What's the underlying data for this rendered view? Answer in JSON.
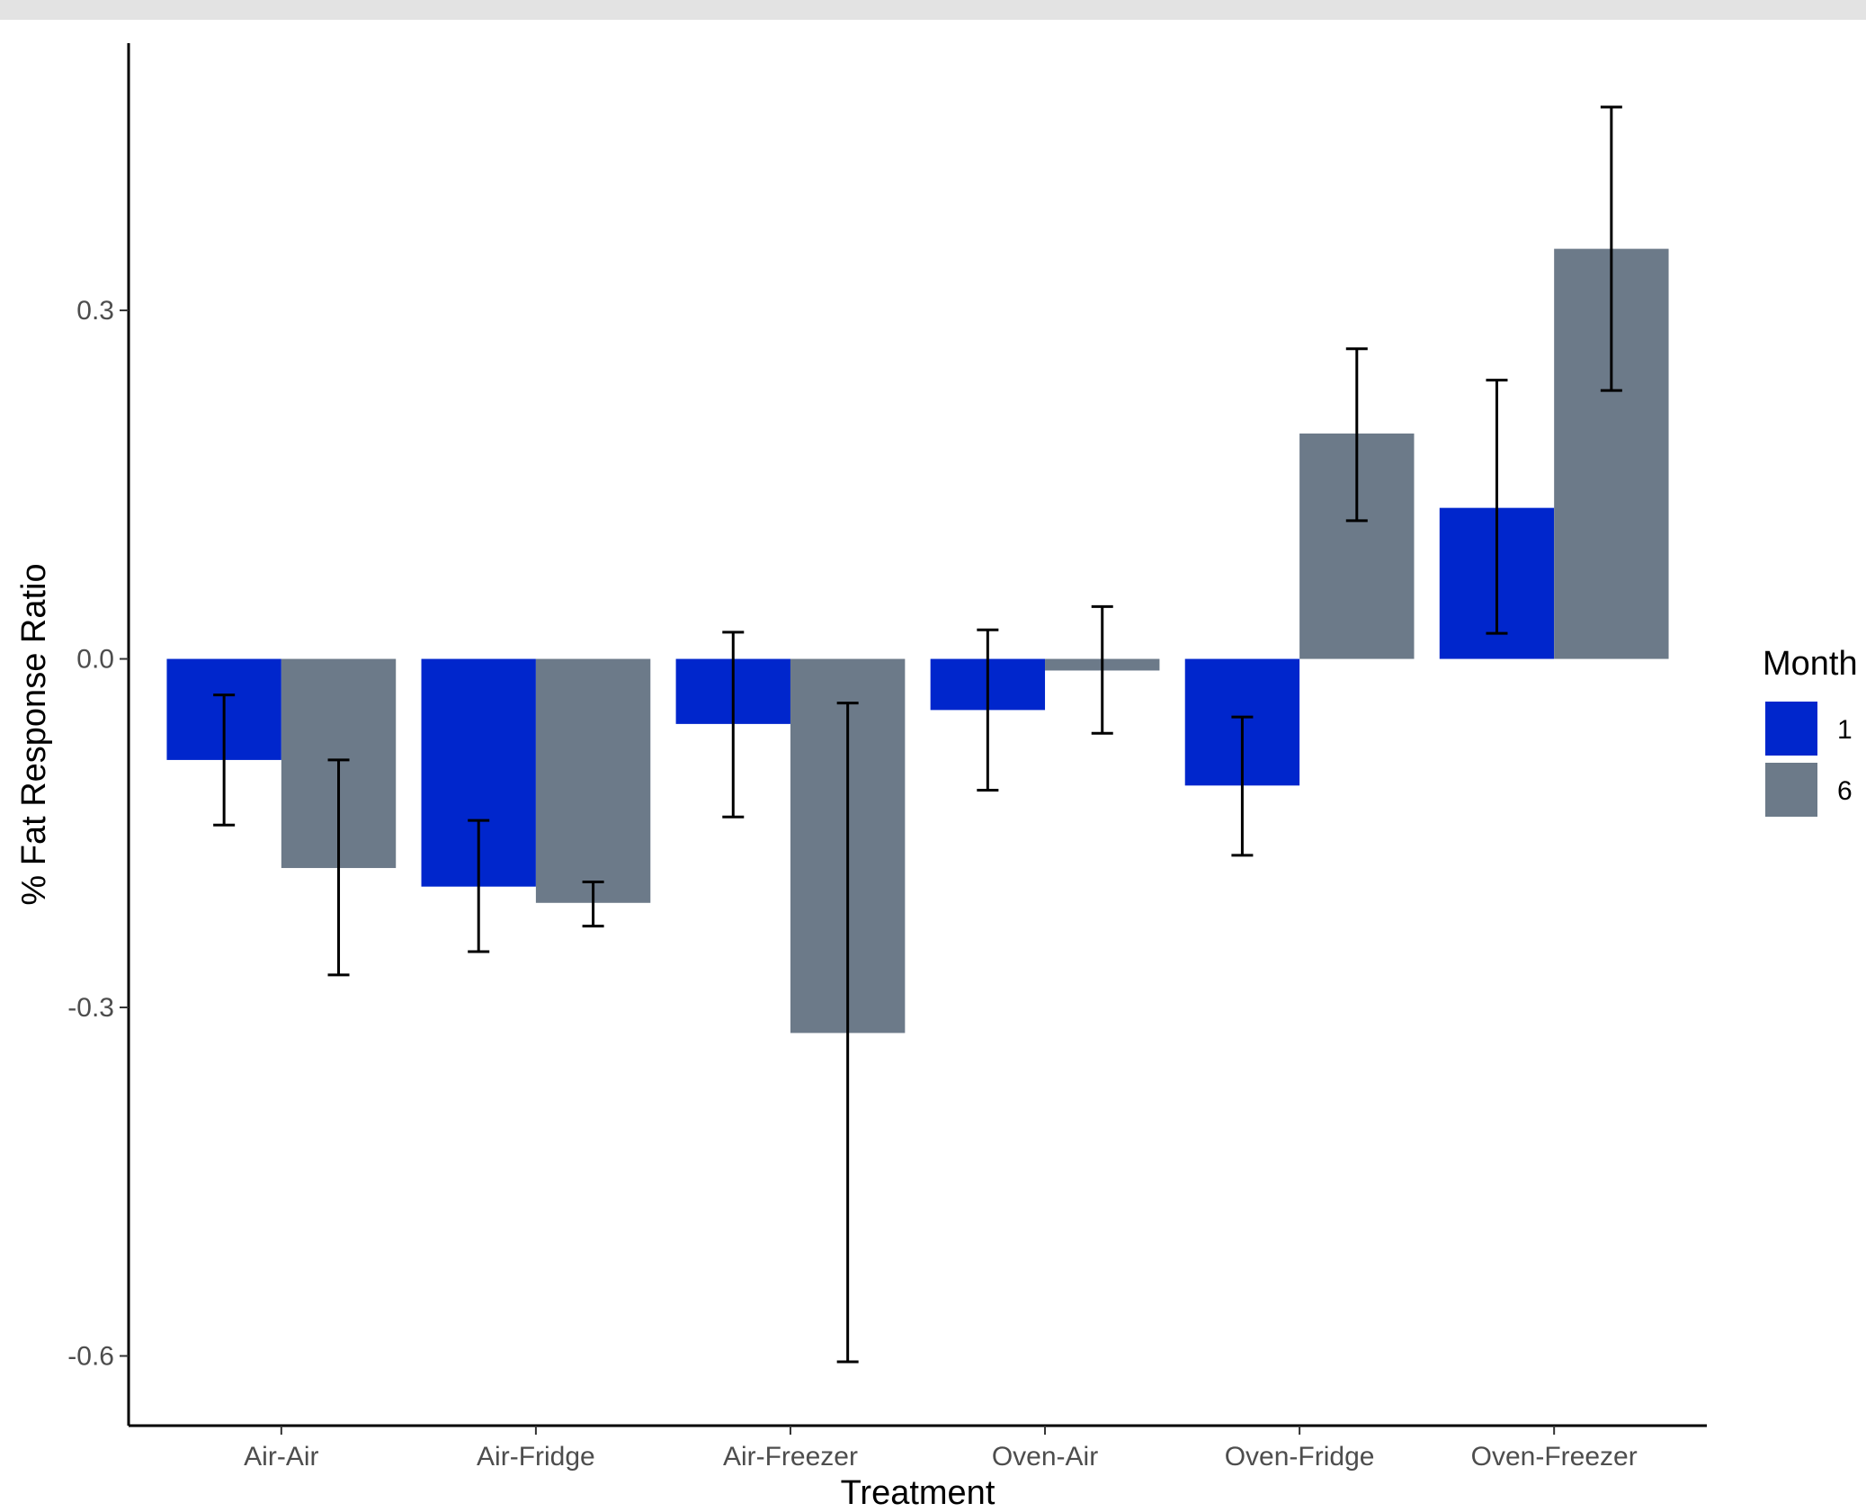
{
  "chart_data": {
    "type": "bar",
    "xlabel": "Treatment",
    "ylabel": "% Fat Response Ratio",
    "ylim": [
      -0.66,
      0.53
    ],
    "yticks": [
      0.3,
      0.0,
      -0.3,
      -0.6
    ],
    "ytick_labels": [
      "0.3",
      "0.0",
      "-0.3",
      "-0.6"
    ],
    "categories": [
      "Air-Air",
      "Air-Fridge",
      "Air-Freezer",
      "Oven-Air",
      "Oven-Fridge",
      "Oven-Freezer"
    ],
    "legend": {
      "title": "Month",
      "position": "right"
    },
    "grid": false,
    "series": [
      {
        "name": "1",
        "color": "#0026cc",
        "values": [
          -0.087,
          -0.196,
          -0.056,
          -0.044,
          -0.109,
          0.13
        ],
        "error_low": [
          -0.143,
          -0.252,
          -0.136,
          -0.113,
          -0.169,
          0.022
        ],
        "error_high": [
          -0.031,
          -0.139,
          0.023,
          0.025,
          -0.05,
          0.24
        ]
      },
      {
        "name": "6",
        "color": "#6c7a89",
        "values": [
          -0.18,
          -0.21,
          -0.322,
          -0.01,
          0.194,
          0.353
        ],
        "error_low": [
          -0.272,
          -0.23,
          -0.605,
          -0.064,
          0.119,
          0.231
        ],
        "error_high": [
          -0.087,
          -0.192,
          -0.038,
          0.045,
          0.267,
          0.475
        ]
      }
    ]
  }
}
